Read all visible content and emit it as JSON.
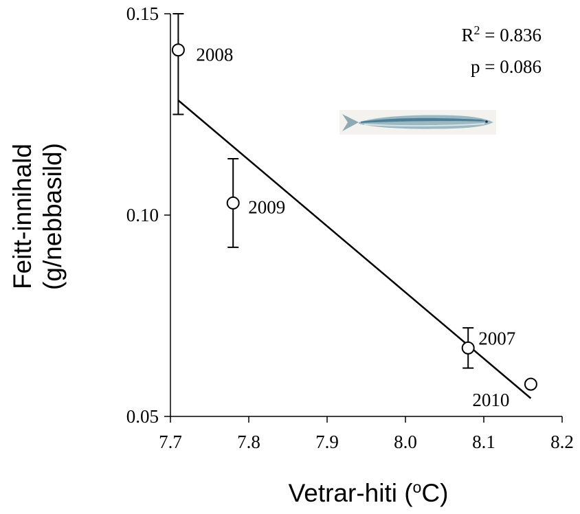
{
  "chart_data": {
    "type": "scatter",
    "xlabel": "Vetrar-hiti (",
    "xlabel_sup": "o",
    "xlabel_end": "C)",
    "ylabel_line1": "Feitt-innihald",
    "ylabel_line2": "(g/nebbasild)",
    "xlim": [
      7.7,
      8.2
    ],
    "ylim": [
      0.05,
      0.15
    ],
    "x_ticks": [
      "7.7",
      "7.8",
      "7.9",
      "8.0",
      "8.1",
      "8.2"
    ],
    "y_ticks": [
      "0.05",
      "0.10",
      "0.15"
    ],
    "grid": false,
    "points": [
      {
        "label": "2008",
        "x": 7.71,
        "y": 0.141,
        "err_low": 0.125,
        "err_high": 0.15
      },
      {
        "label": "2009",
        "x": 7.78,
        "y": 0.103,
        "err_low": 0.092,
        "err_high": 0.114
      },
      {
        "label": "2007",
        "x": 8.08,
        "y": 0.067,
        "err_low": 0.062,
        "err_high": 0.072
      },
      {
        "label": "2010",
        "x": 8.16,
        "y": 0.058,
        "err_low": null,
        "err_high": null
      }
    ],
    "fit_line": {
      "x": [
        7.71,
        8.16
      ],
      "y": [
        0.1285,
        0.0545
      ]
    },
    "annotation": {
      "r2_prefix": "R",
      "r2_sup": "2",
      "r2_value": " = 0.836",
      "p_text": "p = 0.086"
    },
    "inset_image": "sand-eel-fish-illustration"
  }
}
